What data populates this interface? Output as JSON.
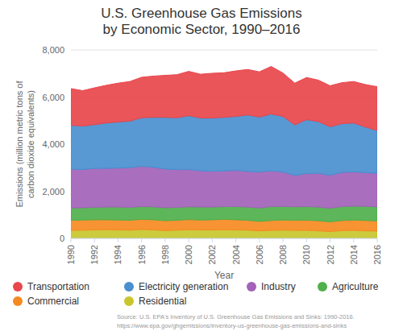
{
  "chart_data": {
    "type": "area",
    "title": [
      "U.S. Greenhouse Gas Emissions",
      "by Economic Sector, 1990–2016"
    ],
    "x_label": "Year",
    "y_label": [
      "Emissions (million metric tons of",
      "carbon dioxide equivalents)"
    ],
    "source": [
      "Source: U.S. EPA's Inventory of U.S. Greenhouse Gas Emissions and Sinks: 1990-2016.",
      "https://www.epa.gov/ghgemissions/inventory-us-greenhouse-gas-emissions-and-sinks"
    ],
    "x": [
      1990,
      1991,
      1992,
      1993,
      1994,
      1995,
      1996,
      1997,
      1998,
      1999,
      2000,
      2001,
      2002,
      2003,
      2004,
      2005,
      2006,
      2007,
      2008,
      2009,
      2010,
      2011,
      2012,
      2013,
      2014,
      2015,
      2016
    ],
    "xlim": [
      1990,
      2016
    ],
    "xticks": [
      1990,
      1992,
      1994,
      1996,
      1998,
      2000,
      2002,
      2004,
      2006,
      2008,
      2010,
      2012,
      2014,
      2016
    ],
    "ylim": [
      0,
      8000
    ],
    "yticks": [
      0,
      {
        "value": 2000,
        "label": "2,000"
      },
      {
        "value": 4000,
        "label": "4,000"
      },
      {
        "value": 6000,
        "label": "6,000"
      },
      {
        "value": 8000,
        "label": "8,000"
      }
    ],
    "stacked": true,
    "grid": true,
    "legend": "bottom",
    "series": [
      {
        "name": "Transportation",
        "color": "#e8474c",
        "values": [
          1560,
          1500,
          1560,
          1600,
          1650,
          1680,
          1720,
          1750,
          1780,
          1830,
          1880,
          1860,
          1900,
          1890,
          1930,
          1930,
          1920,
          2020,
          1840,
          1770,
          1790,
          1760,
          1740,
          1740,
          1760,
          1800,
          1860
        ]
      },
      {
        "name": "Electricity generation",
        "color": "#4a8fcf",
        "values": [
          1860,
          1850,
          1860,
          1930,
          1950,
          1980,
          2060,
          2120,
          2200,
          2200,
          2290,
          2240,
          2260,
          2280,
          2290,
          2400,
          2330,
          2420,
          2360,
          2150,
          2290,
          2200,
          2060,
          2070,
          2080,
          1940,
          1820
        ]
      },
      {
        "name": "Industry",
        "color": "#a263b8",
        "values": [
          1650,
          1620,
          1650,
          1640,
          1660,
          1680,
          1710,
          1680,
          1640,
          1600,
          1580,
          1540,
          1520,
          1510,
          1540,
          1510,
          1530,
          1510,
          1460,
          1330,
          1400,
          1430,
          1400,
          1450,
          1450,
          1430,
          1420
        ]
      },
      {
        "name": "Agriculture",
        "color": "#4fb04c",
        "values": [
          520,
          520,
          530,
          540,
          550,
          550,
          540,
          550,
          550,
          550,
          540,
          550,
          540,
          540,
          560,
          560,
          570,
          590,
          580,
          570,
          580,
          580,
          580,
          590,
          590,
          600,
          600
        ]
      },
      {
        "name": "Commercial",
        "color": "#f68a22",
        "values": [
          430,
          430,
          430,
          420,
          420,
          420,
          430,
          430,
          420,
          420,
          430,
          420,
          430,
          440,
          430,
          420,
          400,
          420,
          430,
          430,
          430,
          430,
          410,
          430,
          440,
          440,
          430
        ]
      },
      {
        "name": "Residential",
        "color": "#c8c62c",
        "values": [
          340,
          350,
          360,
          370,
          360,
          350,
          380,
          360,
          330,
          350,
          370,
          360,
          360,
          370,
          360,
          350,
          320,
          340,
          350,
          340,
          340,
          320,
          290,
          330,
          340,
          320,
          310
        ]
      }
    ]
  }
}
